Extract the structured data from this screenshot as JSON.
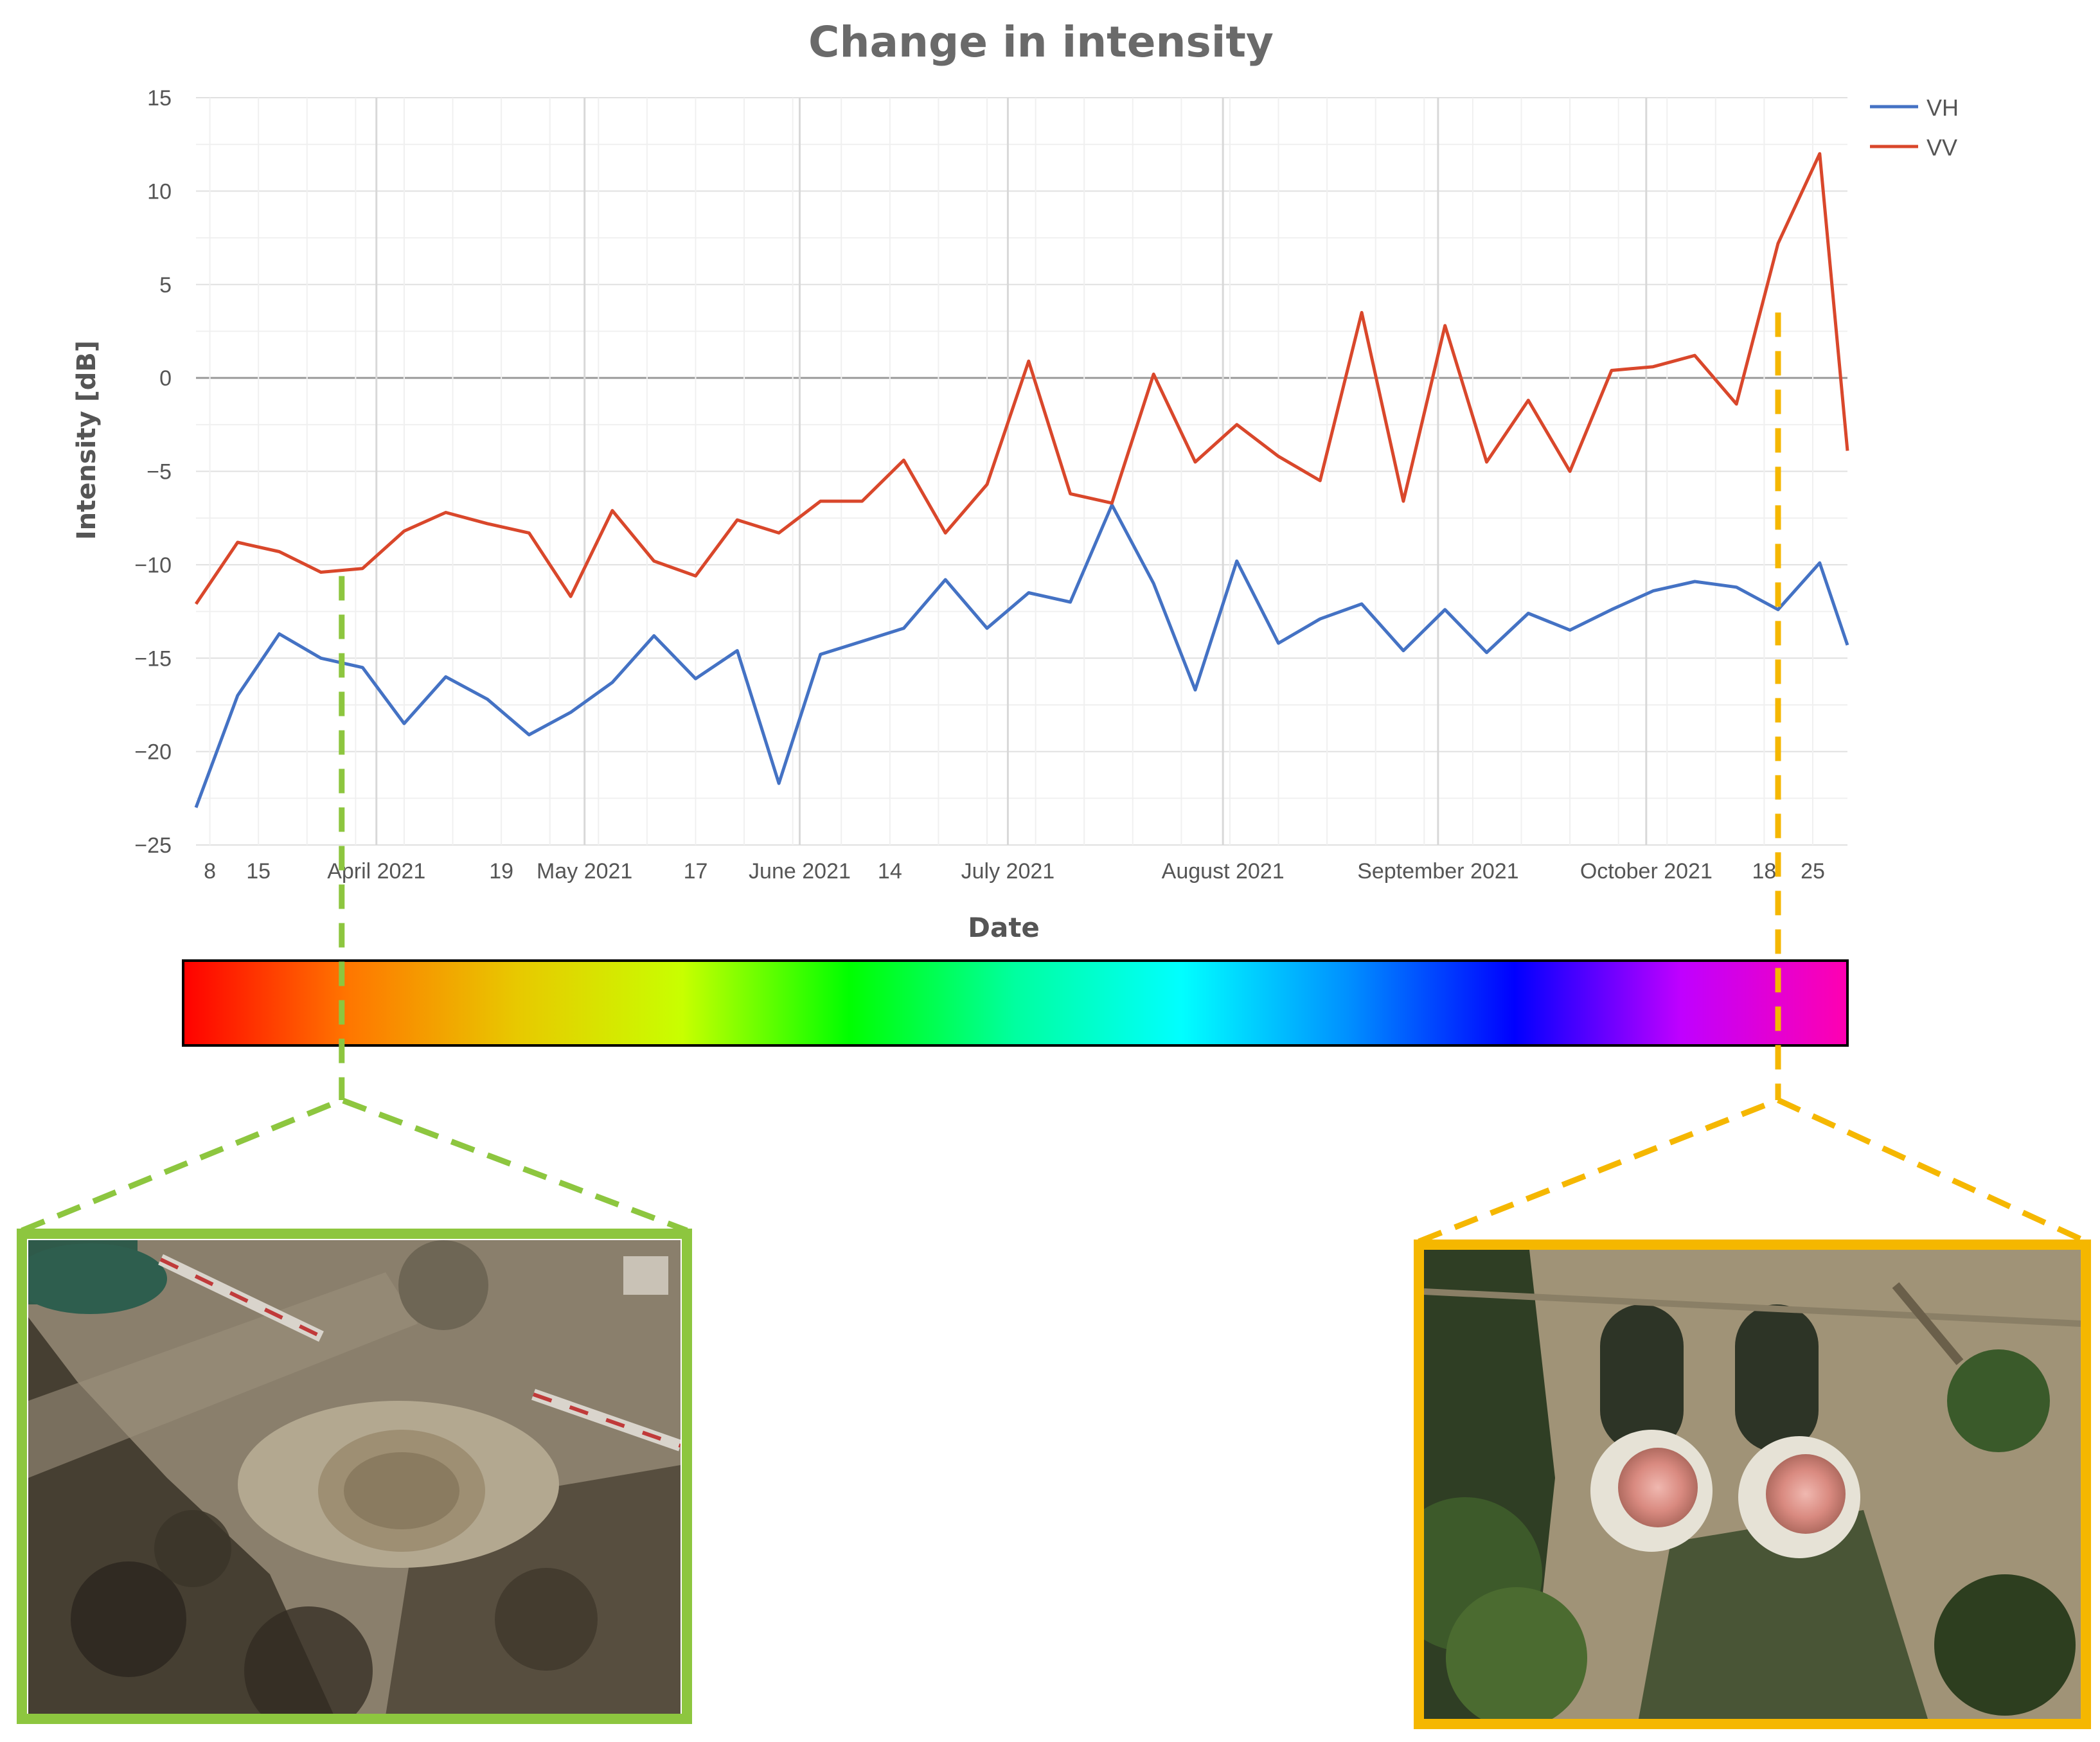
{
  "chart_data": {
    "type": "line",
    "title": "Change in intensity",
    "xlabel": "Date",
    "ylabel": "Intensity [dB]",
    "ylim": [
      -25,
      15
    ],
    "yticks": [
      15,
      10,
      5,
      0,
      -5,
      -10,
      -15,
      -20,
      -25
    ],
    "xlim": [
      "2021-03-06",
      "2021-10-30"
    ],
    "xtick_labels": [
      {
        "date": "2021-03-08",
        "label": "8"
      },
      {
        "date": "2021-03-15",
        "label": "15"
      },
      {
        "date": "2021-04-01",
        "label": "April 2021"
      },
      {
        "date": "2021-04-19",
        "label": "19"
      },
      {
        "date": "2021-05-01",
        "label": "May 2021"
      },
      {
        "date": "2021-05-17",
        "label": "17"
      },
      {
        "date": "2021-06-01",
        "label": "June 2021"
      },
      {
        "date": "2021-06-14",
        "label": "14"
      },
      {
        "date": "2021-07-01",
        "label": "July 2021"
      },
      {
        "date": "2021-08-01",
        "label": "August 2021"
      },
      {
        "date": "2021-09-01",
        "label": "September 2021"
      },
      {
        "date": "2021-10-01",
        "label": "October 2021"
      },
      {
        "date": "2021-10-18",
        "label": "18"
      },
      {
        "date": "2021-10-25",
        "label": "25"
      }
    ],
    "grid": true,
    "legend_position": "top-right",
    "x": [
      "2021-03-06",
      "2021-03-12",
      "2021-03-18",
      "2021-03-24",
      "2021-03-30",
      "2021-04-05",
      "2021-04-11",
      "2021-04-17",
      "2021-04-23",
      "2021-04-29",
      "2021-05-05",
      "2021-05-11",
      "2021-05-17",
      "2021-05-23",
      "2021-05-29",
      "2021-06-04",
      "2021-06-10",
      "2021-06-16",
      "2021-06-22",
      "2021-06-28",
      "2021-07-04",
      "2021-07-10",
      "2021-07-16",
      "2021-07-22",
      "2021-07-28",
      "2021-08-03",
      "2021-08-09",
      "2021-08-15",
      "2021-08-21",
      "2021-08-27",
      "2021-09-02",
      "2021-09-08",
      "2021-09-14",
      "2021-09-20",
      "2021-09-26",
      "2021-10-02",
      "2021-10-08",
      "2021-10-14",
      "2021-10-20",
      "2021-10-26",
      "2021-10-30"
    ],
    "series": [
      {
        "name": "VH",
        "color": "#4472c4",
        "values": [
          -23,
          -17,
          -13.7,
          -15,
          -15.5,
          -18.5,
          -16,
          -17.2,
          -19.1,
          -17.9,
          -16.3,
          -13.8,
          -16.1,
          -14.6,
          -21.7,
          -14.8,
          -14.1,
          -13.4,
          -10.8,
          -13.4,
          -11.5,
          -12,
          -6.8,
          -11,
          -16.7,
          -9.8,
          -14.2,
          -12.9,
          -12.1,
          -14.6,
          -12.4,
          -14.7,
          -12.6,
          -13.5,
          -12.4,
          -11.4,
          -10.9,
          -11.2,
          -12.4,
          -9.9,
          -14.3
        ]
      },
      {
        "name": "VV",
        "color": "#d9472b",
        "values": [
          -12.1,
          -8.8,
          -9.3,
          -10.4,
          -10.2,
          -8.2,
          -7.2,
          -7.8,
          -8.3,
          -11.7,
          -7.1,
          -9.8,
          -10.6,
          -7.6,
          -8.3,
          -6.6,
          -6.6,
          -4.4,
          -8.3,
          -5.7,
          0.9,
          -6.2,
          -6.7,
          0.2,
          -4.5,
          -2.5,
          -4.2,
          -5.5,
          3.5,
          -6.6,
          2.8,
          -4.5,
          -1.2,
          -5,
          0.4,
          0.6,
          1.2,
          -1.4,
          7.2,
          12,
          -3.9
        ]
      }
    ],
    "markers": [
      {
        "date": "2021-03-27",
        "color": "#8dc63f"
      },
      {
        "date": "2021-10-20",
        "color": "#f5b700"
      }
    ],
    "colorbar": {
      "stops": [
        "#ff0000",
        "#ff7700",
        "#e8c800",
        "#c8ff00",
        "#00ff00",
        "#00ffa0",
        "#00ffff",
        "#0090ff",
        "#0000ff",
        "#c000ff",
        "#ff00b0"
      ]
    }
  },
  "insets": [
    {
      "name": "march-satellite-image",
      "border_color": "#8dc63f"
    },
    {
      "name": "october-satellite-image",
      "border_color": "#f5b700"
    }
  ]
}
